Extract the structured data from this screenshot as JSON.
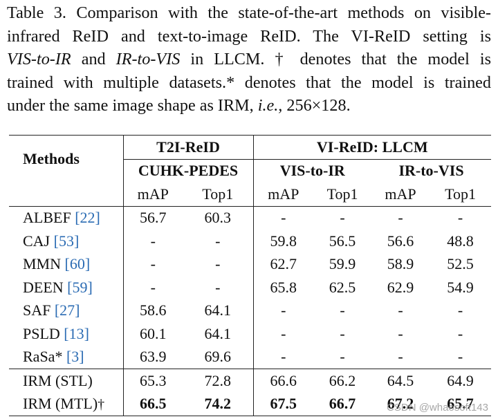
{
  "caption": {
    "line1": "Table 3. Comparison with the state-of-the-art methods on visible-",
    "line2": "infrared ReID and text-to-image ReID. The VI-ReID setting is",
    "line3_italic_a": "VIS-to-IR",
    "line3_mid": " and ",
    "line3_italic_b": "IR-to-VIS",
    "line3_rest": " in LLCM. † denotes that the model is",
    "line4": "trained with multiple datasets.* denotes that the model is trained",
    "line5_a": "under the same image shape as IRM, ",
    "line5_italic": "i.e.,",
    "line5_b": " 256×128."
  },
  "table": {
    "methods_header": "Methods",
    "group_t2i": "T2I-ReID",
    "group_vi": "VI-ReID: LLCM",
    "sub_cuhk": "CUHK-PEDES",
    "sub_vis_ir": "VIS-to-IR",
    "sub_ir_vis": "IR-to-VIS",
    "metric_map": "mAP",
    "metric_top1": "Top1",
    "rows": [
      {
        "name": "ALBEF ",
        "ref": "[22]",
        "vals": [
          "56.7",
          "60.3",
          "-",
          "-",
          "-",
          "-"
        ]
      },
      {
        "name": "CAJ ",
        "ref": "[53]",
        "vals": [
          "-",
          "-",
          "59.8",
          "56.5",
          "56.6",
          "48.8"
        ]
      },
      {
        "name": "MMN ",
        "ref": "[60]",
        "vals": [
          "-",
          "-",
          "62.7",
          "59.9",
          "58.9",
          "52.5"
        ]
      },
      {
        "name": "DEEN ",
        "ref": "[59]",
        "vals": [
          "-",
          "-",
          "65.8",
          "62.5",
          "62.9",
          "54.9"
        ]
      },
      {
        "name": "SAF ",
        "ref": "[27]",
        "vals": [
          "58.6",
          "64.1",
          "-",
          "-",
          "-",
          "-"
        ]
      },
      {
        "name": "PSLD ",
        "ref": "[13]",
        "vals": [
          "60.1",
          "64.1",
          "-",
          "-",
          "-",
          "-"
        ]
      },
      {
        "name": "RaSa* ",
        "ref": "[3]",
        "vals": [
          "63.9",
          "69.6",
          "-",
          "-",
          "-",
          "-"
        ]
      },
      {
        "name": "IRM (STL)",
        "ref": "",
        "vals": [
          "65.3",
          "72.8",
          "66.6",
          "66.2",
          "64.5",
          "64.9"
        ]
      },
      {
        "name": "IRM (MTL)",
        "ref": "",
        "dagger": "†",
        "vals": [
          "66.5",
          "74.2",
          "67.5",
          "66.7",
          "67.2",
          "65.7"
        ]
      }
    ]
  },
  "watermark": "CSDN @whaosoft143"
}
